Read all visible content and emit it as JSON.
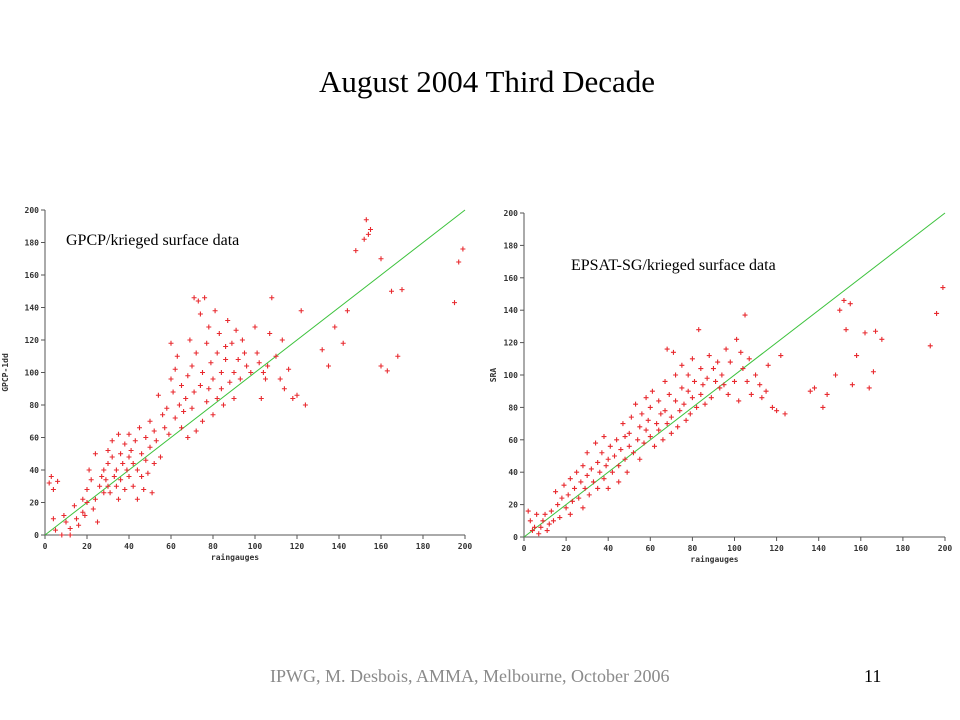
{
  "slide": {
    "title": "August 2004 Third Decade",
    "footer": "IPWG, M. Desbois, AMMA, Melbourne, October 2006",
    "page_number": "11"
  },
  "colors": {
    "point": "#e8292e",
    "fit_line": "#3cc23c",
    "axis": "#555555",
    "footer_text": "#8a8a8a"
  },
  "chart_data": [
    {
      "type": "scatter",
      "annotation": "GPCP/krieged surface data",
      "xlabel": "raingauges",
      "ylabel": "GPCP-1dd",
      "xlim": [
        0,
        200
      ],
      "ylim": [
        0,
        200
      ],
      "x_ticks": [
        "0",
        "20",
        "40",
        "60",
        "80",
        "100",
        "120",
        "140",
        "160",
        "180",
        "200"
      ],
      "y_ticks": [
        "0",
        "20",
        "40",
        "60",
        "80",
        "100",
        "120",
        "140",
        "160",
        "180",
        "200"
      ],
      "reference_line": [
        [
          0,
          0
        ],
        [
          200,
          200
        ]
      ],
      "points": [
        [
          2,
          32
        ],
        [
          3,
          36
        ],
        [
          4,
          28
        ],
        [
          5,
          3
        ],
        [
          4,
          10
        ],
        [
          6,
          33
        ],
        [
          8,
          0
        ],
        [
          9,
          12
        ],
        [
          10,
          8
        ],
        [
          12,
          4
        ],
        [
          12,
          0
        ],
        [
          14,
          18
        ],
        [
          15,
          10
        ],
        [
          16,
          6
        ],
        [
          18,
          22
        ],
        [
          18,
          14
        ],
        [
          19,
          12
        ],
        [
          20,
          28
        ],
        [
          20,
          20
        ],
        [
          21,
          40
        ],
        [
          22,
          34
        ],
        [
          23,
          16
        ],
        [
          24,
          50
        ],
        [
          24,
          22
        ],
        [
          25,
          8
        ],
        [
          26,
          30
        ],
        [
          27,
          36
        ],
        [
          28,
          26
        ],
        [
          28,
          40
        ],
        [
          29,
          34
        ],
        [
          30,
          52
        ],
        [
          30,
          44
        ],
        [
          30,
          30
        ],
        [
          31,
          26
        ],
        [
          32,
          48
        ],
        [
          32,
          58
        ],
        [
          33,
          36
        ],
        [
          34,
          40
        ],
        [
          34,
          30
        ],
        [
          35,
          62
        ],
        [
          35,
          22
        ],
        [
          36,
          50
        ],
        [
          36,
          34
        ],
        [
          37,
          44
        ],
        [
          38,
          28
        ],
        [
          38,
          56
        ],
        [
          39,
          40
        ],
        [
          40,
          48
        ],
        [
          40,
          36
        ],
        [
          40,
          62
        ],
        [
          41,
          52
        ],
        [
          42,
          44
        ],
        [
          42,
          30
        ],
        [
          43,
          58
        ],
        [
          44,
          22
        ],
        [
          44,
          40
        ],
        [
          45,
          66
        ],
        [
          46,
          50
        ],
        [
          46,
          36
        ],
        [
          47,
          28
        ],
        [
          48,
          60
        ],
        [
          48,
          46
        ],
        [
          49,
          38
        ],
        [
          50,
          54
        ],
        [
          50,
          70
        ],
        [
          51,
          26
        ],
        [
          52,
          64
        ],
        [
          52,
          44
        ],
        [
          53,
          58
        ],
        [
          54,
          86
        ],
        [
          55,
          48
        ],
        [
          56,
          74
        ],
        [
          57,
          66
        ],
        [
          58,
          78
        ],
        [
          59,
          62
        ],
        [
          60,
          118
        ],
        [
          60,
          96
        ],
        [
          61,
          88
        ],
        [
          62,
          102
        ],
        [
          62,
          72
        ],
        [
          63,
          110
        ],
        [
          64,
          80
        ],
        [
          65,
          66
        ],
        [
          65,
          92
        ],
        [
          66,
          76
        ],
        [
          67,
          84
        ],
        [
          68,
          98
        ],
        [
          68,
          60
        ],
        [
          69,
          120
        ],
        [
          70,
          104
        ],
        [
          70,
          78
        ],
        [
          71,
          146
        ],
        [
          71,
          88
        ],
        [
          72,
          112
        ],
        [
          72,
          64
        ],
        [
          73,
          144
        ],
        [
          74,
          92
        ],
        [
          74,
          136
        ],
        [
          75,
          70
        ],
        [
          75,
          100
        ],
        [
          76,
          146
        ],
        [
          77,
          82
        ],
        [
          77,
          118
        ],
        [
          78,
          128
        ],
        [
          78,
          90
        ],
        [
          79,
          106
        ],
        [
          80,
          96
        ],
        [
          80,
          74
        ],
        [
          81,
          138
        ],
        [
          82,
          112
        ],
        [
          82,
          84
        ],
        [
          83,
          124
        ],
        [
          84,
          90
        ],
        [
          84,
          100
        ],
        [
          85,
          80
        ],
        [
          86,
          116
        ],
        [
          86,
          108
        ],
        [
          87,
          132
        ],
        [
          88,
          94
        ],
        [
          89,
          118
        ],
        [
          90,
          84
        ],
        [
          90,
          100
        ],
        [
          91,
          126
        ],
        [
          92,
          108
        ],
        [
          93,
          96
        ],
        [
          94,
          120
        ],
        [
          95,
          112
        ],
        [
          96,
          104
        ],
        [
          98,
          100
        ],
        [
          100,
          128
        ],
        [
          101,
          112
        ],
        [
          102,
          106
        ],
        [
          103,
          84
        ],
        [
          104,
          100
        ],
        [
          105,
          96
        ],
        [
          106,
          104
        ],
        [
          107,
          124
        ],
        [
          108,
          146
        ],
        [
          110,
          110
        ],
        [
          112,
          96
        ],
        [
          113,
          120
        ],
        [
          114,
          90
        ],
        [
          116,
          102
        ],
        [
          118,
          84
        ],
        [
          120,
          86
        ],
        [
          122,
          138
        ],
        [
          124,
          80
        ],
        [
          132,
          114
        ],
        [
          135,
          104
        ],
        [
          138,
          128
        ],
        [
          142,
          118
        ],
        [
          144,
          138
        ],
        [
          148,
          175
        ],
        [
          152,
          182
        ],
        [
          153,
          194
        ],
        [
          154,
          185
        ],
        [
          155,
          188
        ],
        [
          160,
          170
        ],
        [
          160,
          104
        ],
        [
          163,
          101
        ],
        [
          165,
          150
        ],
        [
          168,
          110
        ],
        [
          170,
          151
        ],
        [
          195,
          143
        ],
        [
          197,
          168
        ],
        [
          199,
          176
        ]
      ]
    },
    {
      "type": "scatter",
      "annotation": "EPSAT-SG/krieged surface data",
      "xlabel": "raingauges",
      "ylabel": "SRA",
      "xlim": [
        0,
        200
      ],
      "ylim": [
        0,
        200
      ],
      "x_ticks": [
        "0",
        "20",
        "40",
        "60",
        "80",
        "100",
        "120",
        "140",
        "160",
        "180",
        "200"
      ],
      "y_ticks": [
        "0",
        "20",
        "40",
        "60",
        "80",
        "100",
        "120",
        "140",
        "160",
        "180",
        "200"
      ],
      "reference_line": [
        [
          0,
          0
        ],
        [
          200,
          200
        ]
      ],
      "points": [
        [
          2,
          16
        ],
        [
          3,
          10
        ],
        [
          4,
          4
        ],
        [
          5,
          6
        ],
        [
          6,
          14
        ],
        [
          7,
          2
        ],
        [
          8,
          6
        ],
        [
          9,
          10
        ],
        [
          10,
          14
        ],
        [
          11,
          4
        ],
        [
          12,
          8
        ],
        [
          13,
          16
        ],
        [
          14,
          10
        ],
        [
          15,
          28
        ],
        [
          16,
          20
        ],
        [
          17,
          12
        ],
        [
          18,
          24
        ],
        [
          19,
          32
        ],
        [
          20,
          18
        ],
        [
          21,
          26
        ],
        [
          22,
          36
        ],
        [
          22,
          14
        ],
        [
          23,
          22
        ],
        [
          24,
          30
        ],
        [
          25,
          40
        ],
        [
          26,
          24
        ],
        [
          27,
          34
        ],
        [
          28,
          18
        ],
        [
          28,
          44
        ],
        [
          29,
          30
        ],
        [
          30,
          38
        ],
        [
          30,
          52
        ],
        [
          31,
          26
        ],
        [
          32,
          42
        ],
        [
          33,
          34
        ],
        [
          34,
          58
        ],
        [
          35,
          46
        ],
        [
          35,
          30
        ],
        [
          36,
          40
        ],
        [
          37,
          52
        ],
        [
          38,
          36
        ],
        [
          38,
          62
        ],
        [
          39,
          44
        ],
        [
          40,
          48
        ],
        [
          40,
          30
        ],
        [
          41,
          56
        ],
        [
          42,
          40
        ],
        [
          43,
          50
        ],
        [
          44,
          60
        ],
        [
          45,
          44
        ],
        [
          45,
          34
        ],
        [
          46,
          54
        ],
        [
          47,
          70
        ],
        [
          48,
          48
        ],
        [
          48,
          62
        ],
        [
          49,
          40
        ],
        [
          50,
          56
        ],
        [
          50,
          64
        ],
        [
          51,
          74
        ],
        [
          52,
          52
        ],
        [
          53,
          82
        ],
        [
          54,
          60
        ],
        [
          55,
          68
        ],
        [
          55,
          48
        ],
        [
          56,
          76
        ],
        [
          57,
          58
        ],
        [
          58,
          86
        ],
        [
          58,
          66
        ],
        [
          59,
          72
        ],
        [
          60,
          62
        ],
        [
          60,
          80
        ],
        [
          61,
          90
        ],
        [
          62,
          56
        ],
        [
          63,
          70
        ],
        [
          64,
          84
        ],
        [
          64,
          66
        ],
        [
          65,
          76
        ],
        [
          66,
          60
        ],
        [
          67,
          96
        ],
        [
          67,
          78
        ],
        [
          68,
          116
        ],
        [
          68,
          70
        ],
        [
          69,
          88
        ],
        [
          70,
          74
        ],
        [
          70,
          64
        ],
        [
          71,
          114
        ],
        [
          72,
          84
        ],
        [
          72,
          100
        ],
        [
          73,
          68
        ],
        [
          74,
          78
        ],
        [
          75,
          92
        ],
        [
          75,
          106
        ],
        [
          76,
          82
        ],
        [
          77,
          72
        ],
        [
          78,
          100
        ],
        [
          78,
          90
        ],
        [
          79,
          76
        ],
        [
          80,
          86
        ],
        [
          80,
          110
        ],
        [
          81,
          96
        ],
        [
          82,
          80
        ],
        [
          83,
          128
        ],
        [
          84,
          88
        ],
        [
          84,
          104
        ],
        [
          85,
          94
        ],
        [
          86,
          82
        ],
        [
          87,
          98
        ],
        [
          88,
          112
        ],
        [
          89,
          86
        ],
        [
          90,
          104
        ],
        [
          91,
          96
        ],
        [
          92,
          108
        ],
        [
          93,
          92
        ],
        [
          94,
          100
        ],
        [
          95,
          94
        ],
        [
          96,
          116
        ],
        [
          97,
          88
        ],
        [
          98,
          108
        ],
        [
          100,
          96
        ],
        [
          101,
          122
        ],
        [
          102,
          84
        ],
        [
          103,
          114
        ],
        [
          104,
          104
        ],
        [
          105,
          137
        ],
        [
          106,
          96
        ],
        [
          107,
          110
        ],
        [
          108,
          88
        ],
        [
          110,
          100
        ],
        [
          112,
          94
        ],
        [
          113,
          86
        ],
        [
          115,
          90
        ],
        [
          116,
          106
        ],
        [
          118,
          80
        ],
        [
          120,
          78
        ],
        [
          122,
          112
        ],
        [
          124,
          76
        ],
        [
          136,
          90
        ],
        [
          138,
          92
        ],
        [
          142,
          80
        ],
        [
          144,
          88
        ],
        [
          148,
          100
        ],
        [
          150,
          140
        ],
        [
          152,
          146
        ],
        [
          153,
          128
        ],
        [
          155,
          144
        ],
        [
          156,
          94
        ],
        [
          158,
          112
        ],
        [
          162,
          126
        ],
        [
          164,
          92
        ],
        [
          166,
          102
        ],
        [
          167,
          127
        ],
        [
          170,
          122
        ],
        [
          193,
          118
        ],
        [
          196,
          138
        ],
        [
          199,
          154
        ]
      ]
    }
  ]
}
